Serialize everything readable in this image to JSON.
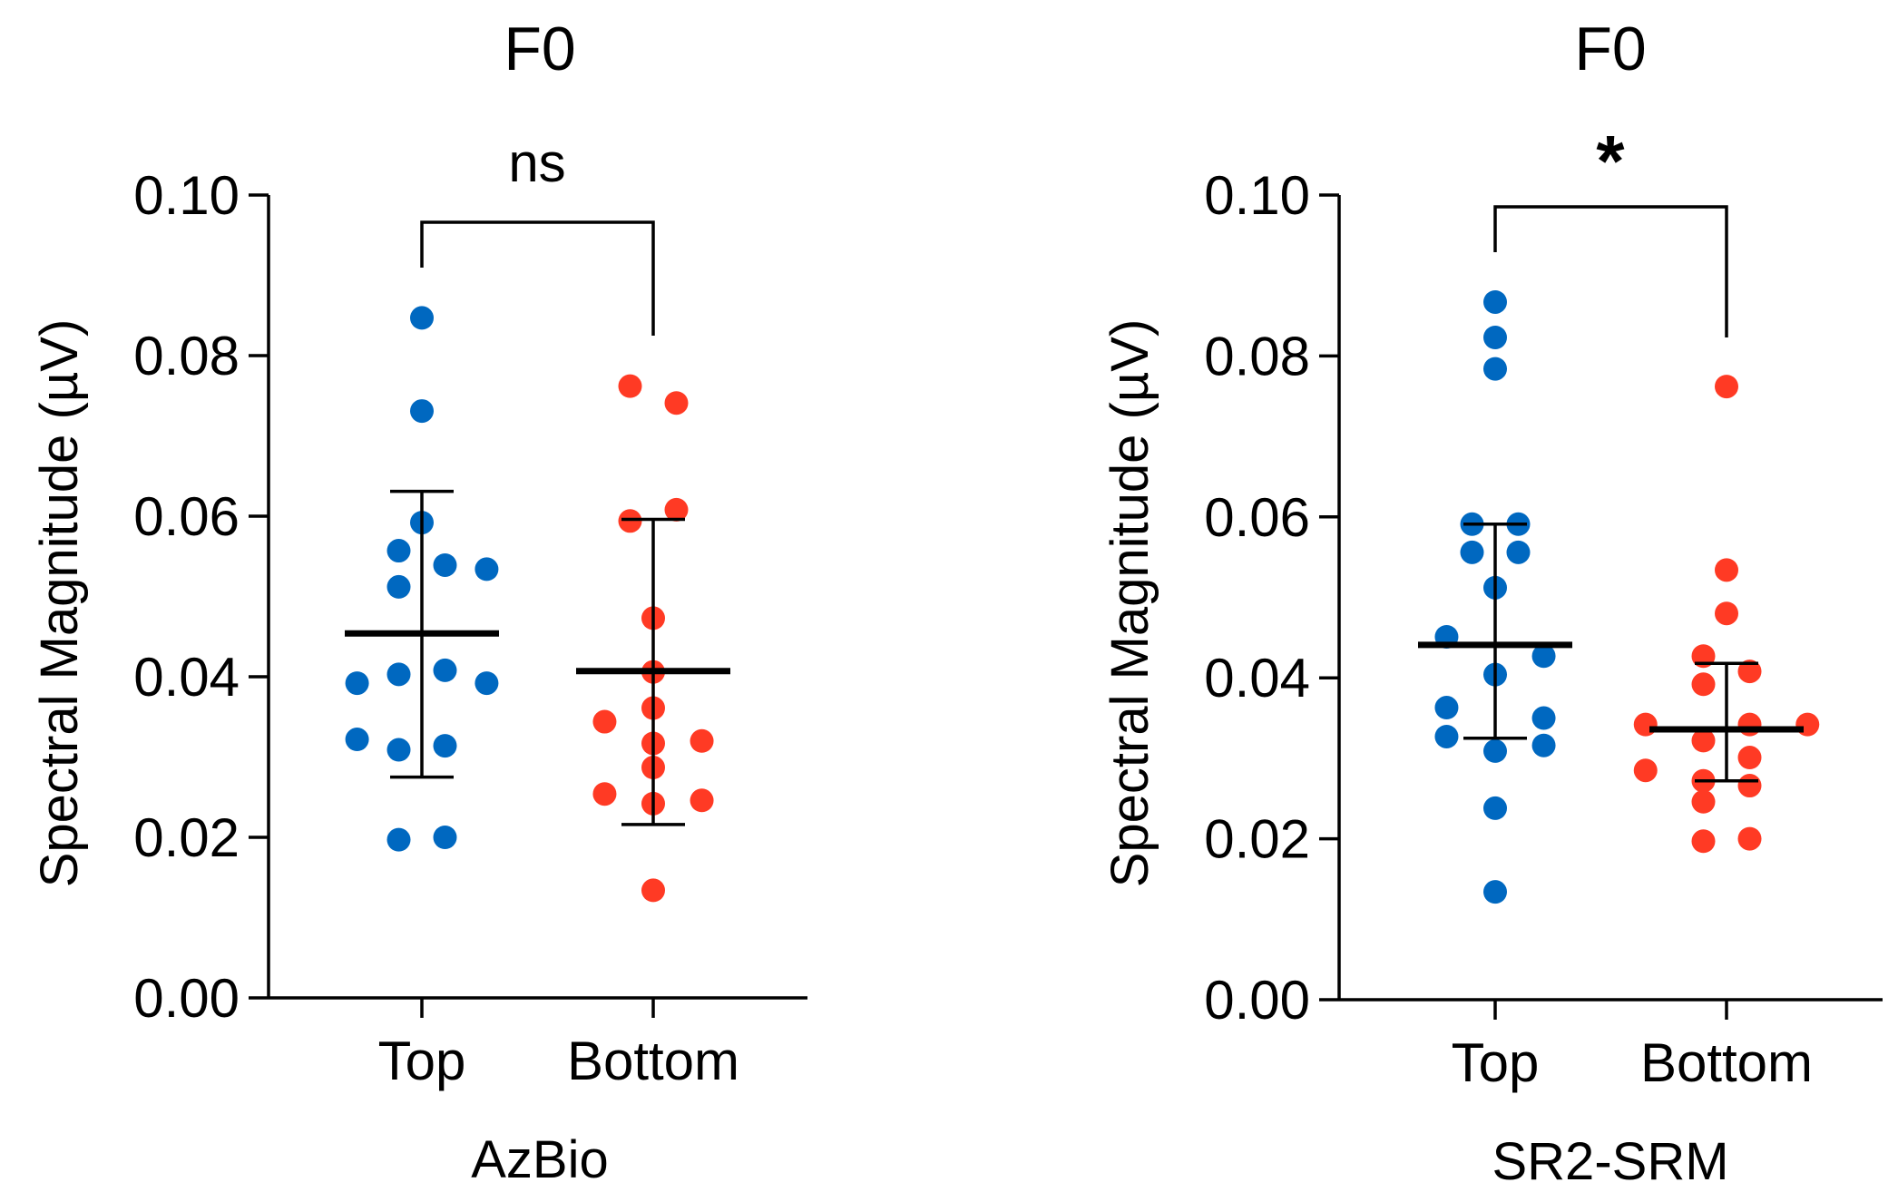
{
  "chart_data": [
    {
      "type": "scatter",
      "title": "F0",
      "xlabel": "AzBio",
      "ylabel": "Spectral Magnitude (µV)",
      "ylim": [
        0.0,
        0.1
      ],
      "yticks": [
        "0.00",
        "0.02",
        "0.04",
        "0.06",
        "0.08",
        "0.10"
      ],
      "categories": [
        "Top",
        "Bottom"
      ],
      "significance": "ns",
      "series": [
        {
          "name": "Top",
          "color": "#0068c0",
          "mean": 0.0454,
          "sd_low": 0.0275,
          "sd_high": 0.0631,
          "points": [
            {
              "offset": 0.0,
              "y": 0.0847
            },
            {
              "offset": 0.0,
              "y": 0.0731
            },
            {
              "offset": 0.0,
              "y": 0.0592
            },
            {
              "offset": -0.1,
              "y": 0.0557
            },
            {
              "offset": 0.1,
              "y": 0.0539
            },
            {
              "offset": 0.28,
              "y": 0.0534
            },
            {
              "offset": -0.1,
              "y": 0.0512
            },
            {
              "offset": -0.1,
              "y": 0.0403
            },
            {
              "offset": 0.1,
              "y": 0.0408
            },
            {
              "offset": -0.28,
              "y": 0.0392
            },
            {
              "offset": 0.28,
              "y": 0.0392
            },
            {
              "offset": -0.28,
              "y": 0.0322
            },
            {
              "offset": -0.1,
              "y": 0.0309
            },
            {
              "offset": 0.1,
              "y": 0.0314
            },
            {
              "offset": -0.1,
              "y": 0.0197
            },
            {
              "offset": 0.1,
              "y": 0.02
            }
          ]
        },
        {
          "name": "Bottom",
          "color": "#ff3a24",
          "mean": 0.0407,
          "sd_low": 0.0216,
          "sd_high": 0.0596,
          "points": [
            {
              "offset": -0.1,
              "y": 0.0762
            },
            {
              "offset": 0.1,
              "y": 0.0741
            },
            {
              "offset": 0.1,
              "y": 0.0608
            },
            {
              "offset": -0.1,
              "y": 0.0594
            },
            {
              "offset": 0.0,
              "y": 0.0473
            },
            {
              "offset": 0.0,
              "y": 0.0406
            },
            {
              "offset": 0.0,
              "y": 0.0361
            },
            {
              "offset": -0.21,
              "y": 0.0344
            },
            {
              "offset": 0.0,
              "y": 0.0317
            },
            {
              "offset": 0.21,
              "y": 0.032
            },
            {
              "offset": 0.0,
              "y": 0.0287
            },
            {
              "offset": -0.21,
              "y": 0.0254
            },
            {
              "offset": 0.0,
              "y": 0.0242
            },
            {
              "offset": 0.21,
              "y": 0.0246
            },
            {
              "offset": 0.0,
              "y": 0.0134
            }
          ]
        }
      ]
    },
    {
      "type": "scatter",
      "title": "F0",
      "xlabel": "SR2-SRM",
      "ylabel": "Spectral Magnitude (µV)",
      "ylim": [
        0.0,
        0.1
      ],
      "yticks": [
        "0.00",
        "0.02",
        "0.04",
        "0.06",
        "0.08",
        "0.10"
      ],
      "categories": [
        "Top",
        "Bottom"
      ],
      "significance": "*",
      "series": [
        {
          "name": "Top",
          "color": "#0068c0",
          "mean": 0.0441,
          "sd_low": 0.0325,
          "sd_high": 0.0591,
          "points": [
            {
              "offset": 0.0,
              "y": 0.0867
            },
            {
              "offset": 0.0,
              "y": 0.0823
            },
            {
              "offset": 0.0,
              "y": 0.0784
            },
            {
              "offset": -0.1,
              "y": 0.0591
            },
            {
              "offset": 0.1,
              "y": 0.0591
            },
            {
              "offset": -0.1,
              "y": 0.0556
            },
            {
              "offset": 0.1,
              "y": 0.0556
            },
            {
              "offset": 0.0,
              "y": 0.0512
            },
            {
              "offset": -0.21,
              "y": 0.0451
            },
            {
              "offset": 0.0,
              "y": 0.0404
            },
            {
              "offset": 0.21,
              "y": 0.0427
            },
            {
              "offset": -0.21,
              "y": 0.0363
            },
            {
              "offset": 0.21,
              "y": 0.035
            },
            {
              "offset": -0.21,
              "y": 0.0327
            },
            {
              "offset": 0.0,
              "y": 0.0309
            },
            {
              "offset": 0.21,
              "y": 0.0316
            },
            {
              "offset": 0.0,
              "y": 0.0238
            },
            {
              "offset": 0.0,
              "y": 0.0134
            }
          ]
        },
        {
          "name": "Bottom",
          "color": "#ff3a24",
          "mean": 0.0336,
          "sd_low": 0.0272,
          "sd_high": 0.0418,
          "points": [
            {
              "offset": 0.0,
              "y": 0.0762
            },
            {
              "offset": 0.0,
              "y": 0.0534
            },
            {
              "offset": 0.0,
              "y": 0.048
            },
            {
              "offset": -0.1,
              "y": 0.0427
            },
            {
              "offset": 0.1,
              "y": 0.0408
            },
            {
              "offset": -0.1,
              "y": 0.0392
            },
            {
              "offset": -0.35,
              "y": 0.0342
            },
            {
              "offset": 0.1,
              "y": 0.0342
            },
            {
              "offset": 0.35,
              "y": 0.0342
            },
            {
              "offset": -0.1,
              "y": 0.0322
            },
            {
              "offset": 0.1,
              "y": 0.0301
            },
            {
              "offset": -0.35,
              "y": 0.0285
            },
            {
              "offset": -0.1,
              "y": 0.0272
            },
            {
              "offset": 0.1,
              "y": 0.0266
            },
            {
              "offset": -0.1,
              "y": 0.0246
            },
            {
              "offset": -0.1,
              "y": 0.0197
            },
            {
              "offset": 0.1,
              "y": 0.02
            }
          ]
        }
      ]
    }
  ]
}
